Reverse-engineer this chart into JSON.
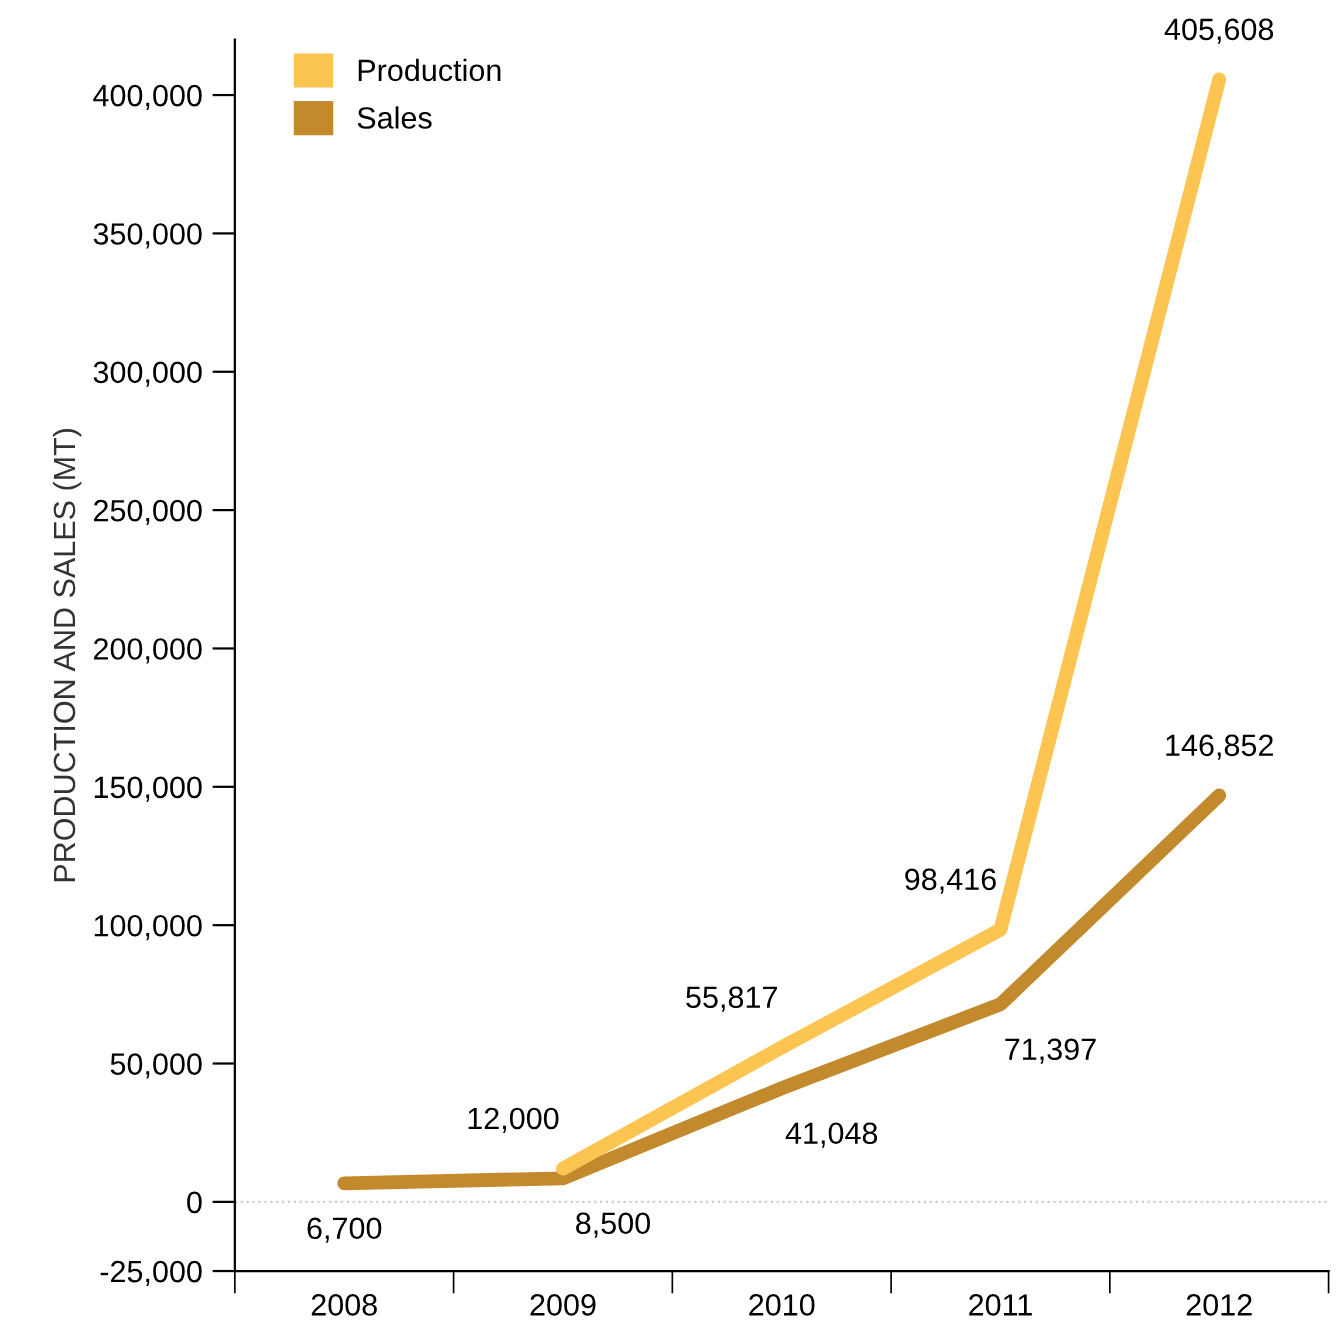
{
  "chart_data": {
    "type": "line",
    "ylabel": "PRODUCTION AND SALES (MT)",
    "categories": [
      "2008",
      "2009",
      "2010",
      "2011",
      "2012"
    ],
    "series": [
      {
        "name": "Production",
        "color": "#fcc450",
        "values": [
          null,
          12000,
          55817,
          98416,
          405608
        ],
        "value_labels": [
          null,
          "12,000",
          "55,817",
          "98,416",
          "405,608"
        ]
      },
      {
        "name": "Sales",
        "color": "#c28a2c",
        "values": [
          6700,
          8500,
          41048,
          71397,
          146852
        ],
        "value_labels": [
          "6,700",
          "8,500",
          "41,048",
          "71,397",
          "146,852"
        ]
      }
    ],
    "ylim": [
      -25000,
      420000
    ],
    "yticks": [
      {
        "value": -25000,
        "label": "-25,000"
      },
      0,
      {
        "value": 50000,
        "label": "50,000"
      },
      {
        "value": 100000,
        "label": "100,000"
      },
      {
        "value": 150000,
        "label": "150,000"
      },
      {
        "value": 200000,
        "label": "200,000"
      },
      {
        "value": 250000,
        "label": "250,000"
      },
      {
        "value": 300000,
        "label": "300,000"
      },
      {
        "value": 350000,
        "label": "350,000"
      },
      {
        "value": 400000,
        "label": "400,000"
      }
    ],
    "ref_lines": [
      {
        "axis": "y",
        "value": 0,
        "color": "#cccccc",
        "line_style": "dotted"
      }
    ],
    "legend": "top left",
    "grid": false,
    "marker": "none",
    "line_style": "solid"
  }
}
